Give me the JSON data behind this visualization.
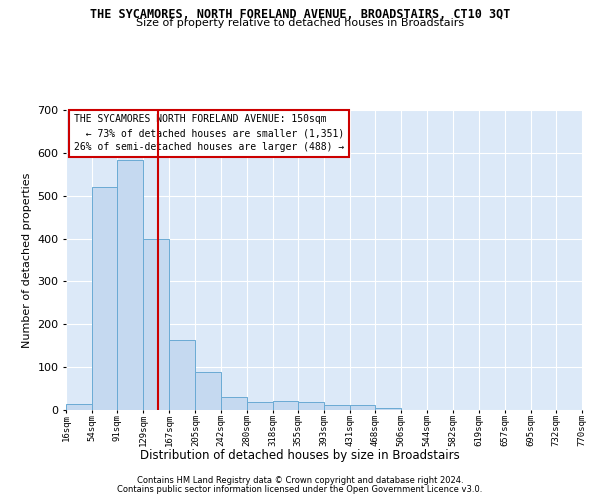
{
  "title": "THE SYCAMORES, NORTH FORELAND AVENUE, BROADSTAIRS, CT10 3QT",
  "subtitle": "Size of property relative to detached houses in Broadstairs",
  "xlabel": "Distribution of detached houses by size in Broadstairs",
  "ylabel": "Number of detached properties",
  "footer_line1": "Contains HM Land Registry data © Crown copyright and database right 2024.",
  "footer_line2": "Contains public sector information licensed under the Open Government Licence v3.0.",
  "annotation_line1": "THE SYCAMORES NORTH FORELAND AVENUE: 150sqm",
  "annotation_line2": "← 73% of detached houses are smaller (1,351)",
  "annotation_line3": "26% of semi-detached houses are larger (488) →",
  "property_size": 150,
  "bin_edges": [
    16,
    54,
    91,
    129,
    167,
    205,
    242,
    280,
    318,
    355,
    393,
    431,
    468,
    506,
    544,
    582,
    619,
    657,
    695,
    732,
    770
  ],
  "bar_heights": [
    14,
    520,
    583,
    400,
    163,
    88,
    31,
    19,
    21,
    19,
    11,
    12,
    5,
    0,
    0,
    0,
    0,
    0,
    0,
    0
  ],
  "bar_color": "#c5d9f0",
  "bar_edge_color": "#6aaad4",
  "vline_color": "#cc0000",
  "background_color": "#dce9f8",
  "grid_color": "#ffffff",
  "annotation_box_color": "#ffffff",
  "annotation_border_color": "#cc0000",
  "ylim": [
    0,
    700
  ],
  "yticks": [
    0,
    100,
    200,
    300,
    400,
    500,
    600,
    700
  ],
  "figsize": [
    6.0,
    5.0
  ],
  "dpi": 100
}
